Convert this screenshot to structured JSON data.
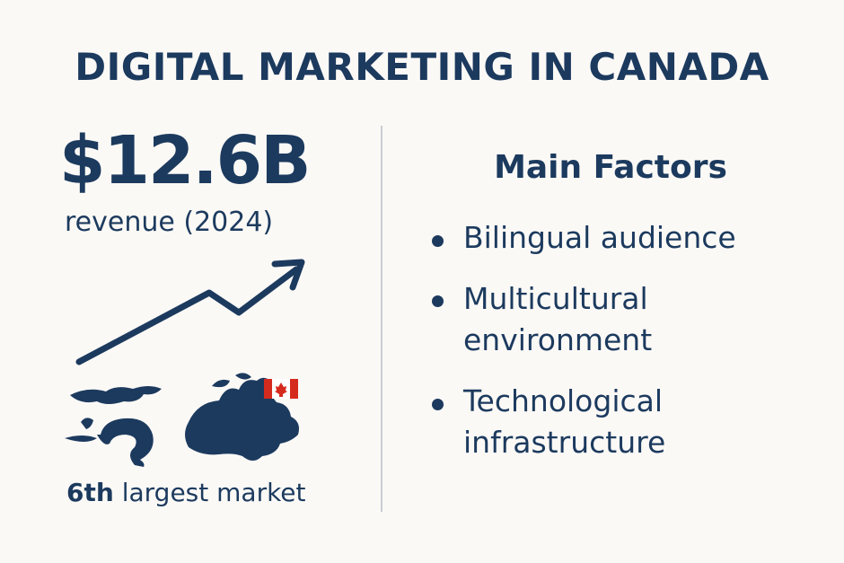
{
  "header": {
    "title": "DIGITAL MARKETING IN CANADA"
  },
  "stat": {
    "value": "$12.6B",
    "label": "revenue (2024)"
  },
  "rank": {
    "bold": "6th",
    "rest": "largest market"
  },
  "factors": {
    "heading": "Main Factors",
    "items": [
      "Bilingual audience",
      "Multicultural environment",
      "Technological infrastructure"
    ]
  }
}
